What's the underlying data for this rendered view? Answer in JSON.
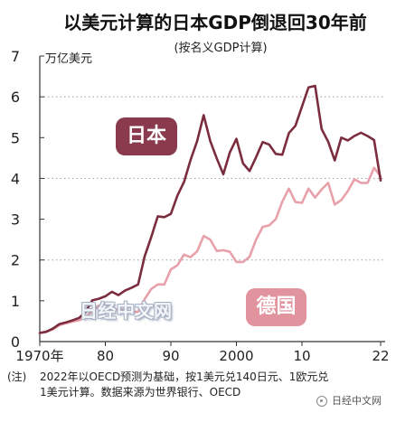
{
  "chart_data": {
    "type": "line",
    "title": "以美元计算的日本GDP倒退回30年前",
    "subtitle": "(按名义GDP计算)",
    "ylabel": "万亿美元",
    "xlim": [
      1970,
      2022
    ],
    "ylim": [
      0,
      7
    ],
    "legend": "inline",
    "grid": {
      "y": true,
      "style": "dotted",
      "at": [
        2,
        4,
        6
      ]
    },
    "x_ticks": [
      {
        "value": 1970,
        "label": "1970年"
      },
      {
        "value": 1980,
        "label": "80"
      },
      {
        "value": 1990,
        "label": "90"
      },
      {
        "value": 2000,
        "label": "2000"
      },
      {
        "value": 2010,
        "label": "10"
      },
      {
        "value": 2022,
        "label": "22"
      }
    ],
    "y_ticks": [
      {
        "value": 0,
        "label": "0"
      },
      {
        "value": 1,
        "label": "1"
      },
      {
        "value": 2,
        "label": "2"
      },
      {
        "value": 3,
        "label": "3"
      },
      {
        "value": 4,
        "label": "4"
      },
      {
        "value": 5,
        "label": "5"
      },
      {
        "value": 6,
        "label": "6"
      },
      {
        "value": 7,
        "label": "7"
      }
    ],
    "x": [
      1970,
      1971,
      1972,
      1973,
      1974,
      1975,
      1976,
      1977,
      1978,
      1979,
      1980,
      1981,
      1982,
      1983,
      1984,
      1985,
      1986,
      1987,
      1988,
      1989,
      1990,
      1991,
      1992,
      1993,
      1994,
      1995,
      1996,
      1997,
      1998,
      1999,
      2000,
      2001,
      2002,
      2003,
      2004,
      2005,
      2006,
      2007,
      2008,
      2009,
      2010,
      2011,
      2012,
      2013,
      2014,
      2015,
      2016,
      2017,
      2018,
      2019,
      2020,
      2021,
      2022
    ],
    "series": [
      {
        "name": "日本",
        "color": "#7b2d3e",
        "label_color": "#8a3a4c",
        "values": [
          0.21,
          0.24,
          0.32,
          0.43,
          0.47,
          0.52,
          0.58,
          0.73,
          1.01,
          1.05,
          1.11,
          1.22,
          1.14,
          1.25,
          1.32,
          1.4,
          2.09,
          2.56,
          3.07,
          3.05,
          3.13,
          3.58,
          3.91,
          4.45,
          4.91,
          5.55,
          4.92,
          4.49,
          4.1,
          4.64,
          4.97,
          4.37,
          4.18,
          4.52,
          4.89,
          4.83,
          4.6,
          4.58,
          5.11,
          5.29,
          5.76,
          6.23,
          6.27,
          5.21,
          4.9,
          4.44,
          5.0,
          4.93,
          5.04,
          5.12,
          5.04,
          4.94,
          3.95
        ]
      },
      {
        "name": "德国",
        "color": "#e8a1aa",
        "label_color": "#e1939e",
        "values": [
          0.21,
          0.25,
          0.3,
          0.4,
          0.45,
          0.49,
          0.52,
          0.6,
          0.74,
          0.88,
          0.95,
          0.8,
          0.78,
          0.77,
          0.73,
          0.73,
          1.04,
          1.29,
          1.4,
          1.4,
          1.77,
          1.87,
          2.13,
          2.07,
          2.21,
          2.59,
          2.5,
          2.22,
          2.24,
          2.2,
          1.95,
          1.95,
          2.08,
          2.5,
          2.81,
          2.85,
          3.0,
          3.43,
          3.75,
          3.42,
          3.4,
          3.75,
          3.53,
          3.73,
          3.89,
          3.36,
          3.47,
          3.69,
          3.98,
          3.89,
          3.89,
          4.26,
          4.05
        ]
      }
    ]
  },
  "watermark": "日经中文网",
  "note": {
    "label": "(注)",
    "lines": [
      "2022年以OECD预测为基础，按1美元兑140日元、1欧元兑",
      "1美元计算。数据来源为世界银行、OECD"
    ]
  },
  "brand": {
    "icon": "wechat-icon",
    "name": "日经中文网"
  }
}
